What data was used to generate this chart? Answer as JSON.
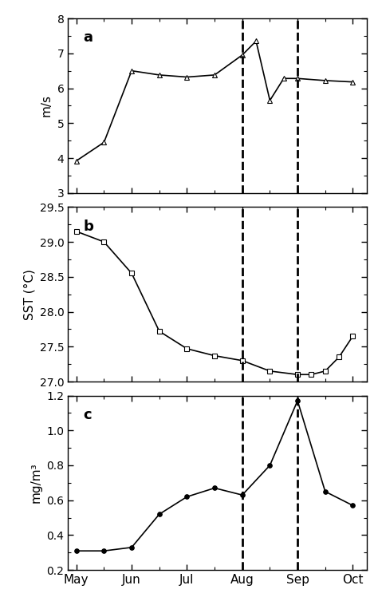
{
  "x_labels": [
    "May",
    "Jun",
    "Jul",
    "Aug",
    "Sep",
    "Oct"
  ],
  "x_ticks": [
    0,
    2,
    4,
    6,
    8,
    10
  ],
  "dashed_lines": [
    6,
    8
  ],
  "wind_y": [
    3.92,
    4.45,
    6.5,
    6.38,
    6.32,
    6.38,
    6.95,
    7.35,
    5.65,
    6.28,
    6.28,
    6.22,
    6.18
  ],
  "wind_x": [
    0,
    1,
    2,
    3,
    4,
    5,
    6,
    6.5,
    7,
    7.5,
    8,
    9,
    10
  ],
  "wind_ylim": [
    3.0,
    8.0
  ],
  "wind_yticks": [
    3,
    4,
    5,
    6,
    7,
    8
  ],
  "wind_ylabel": "m/s",
  "sst_y": [
    29.15,
    29.0,
    28.55,
    27.72,
    27.47,
    27.37,
    27.3,
    27.15,
    27.1,
    27.1,
    27.15,
    27.35,
    27.65
  ],
  "sst_x": [
    0,
    1,
    2,
    3,
    4,
    5,
    6,
    7,
    8,
    8.5,
    9,
    9.5,
    10
  ],
  "sst_ylim": [
    27.0,
    29.5
  ],
  "sst_yticks": [
    27.0,
    27.5,
    28.0,
    28.5,
    29.0,
    29.5
  ],
  "sst_ylabel": "SST (°C)",
  "chl_y": [
    0.31,
    0.31,
    0.33,
    0.52,
    0.62,
    0.67,
    0.63,
    0.8,
    1.17,
    0.65,
    0.57
  ],
  "chl_x": [
    0,
    1,
    2,
    3,
    4,
    5,
    6,
    7,
    8,
    9,
    10
  ],
  "chl_ylim": [
    0.2,
    1.2
  ],
  "chl_yticks": [
    0.2,
    0.4,
    0.6,
    0.8,
    1.0,
    1.2
  ],
  "chl_ylabel": "mg/m³",
  "panel_labels": [
    "a",
    "b",
    "c"
  ],
  "line_color": "black",
  "marker_wind": "^",
  "marker_sst": "s",
  "marker_chl": "o",
  "marker_size": 4,
  "dashed_color": "black",
  "dashed_lw": 2.0,
  "bg_color": "white"
}
